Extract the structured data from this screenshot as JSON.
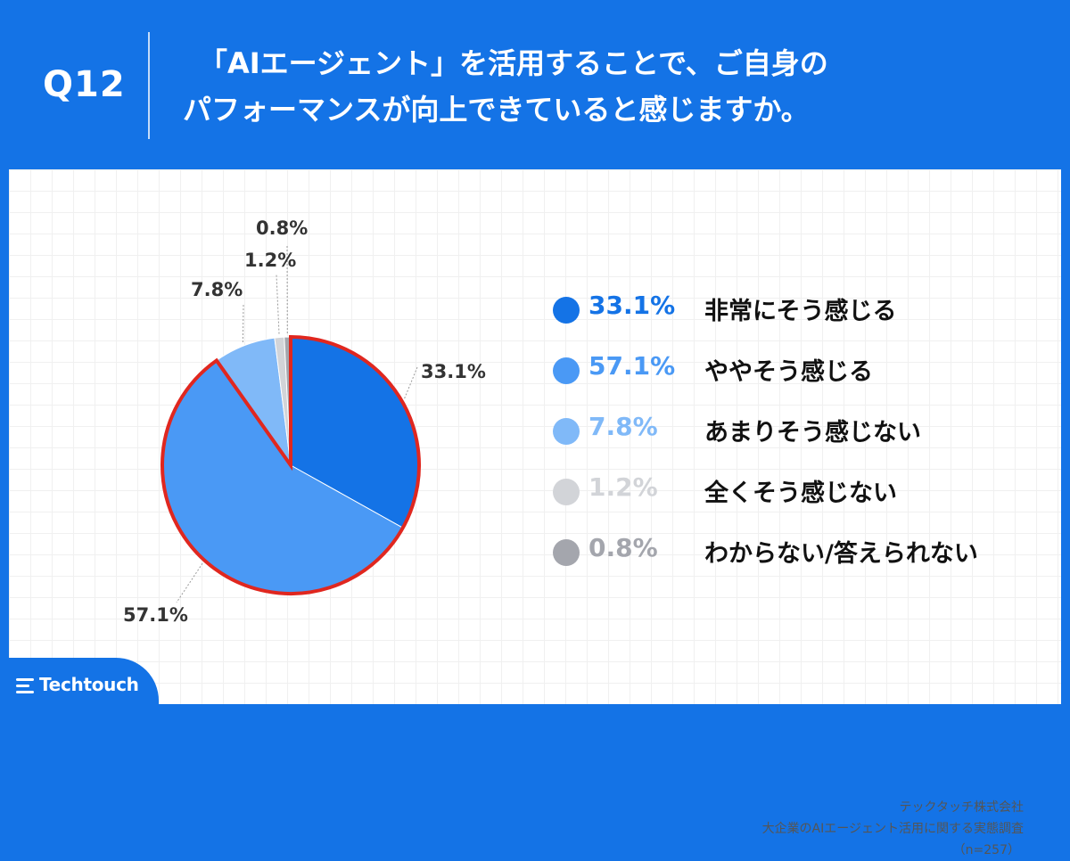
{
  "header": {
    "question_no": "Q12",
    "title_line1": "「AIエージェント」を活用することで、ご自身の",
    "title_line2": "パフォーマンスが向上できていると感じますか。"
  },
  "chart_data": {
    "type": "pie",
    "start_angle_deg": 0,
    "direction": "clockwise",
    "slices": [
      {
        "label": "非常にそう感じる",
        "value": 33.1,
        "value_label": "33.1%",
        "color": "#1473e6"
      },
      {
        "label": "ややそう感じる",
        "value": 57.1,
        "value_label": "57.1%",
        "color": "#4a99f5"
      },
      {
        "label": "あまりそう感じない",
        "value": 7.8,
        "value_label": "7.8%",
        "color": "#80b9f8"
      },
      {
        "label": "全くそう感じない",
        "value": 1.2,
        "value_label": "1.2%",
        "color": "#d2d4d8"
      },
      {
        "label": "わからない/答えられない",
        "value": 0.8,
        "value_label": "0.8%",
        "color": "#a4a6ad"
      }
    ],
    "highlight": {
      "slices": [
        "非常にそう感じる",
        "ややそう感じる"
      ],
      "outline_color": "#e0271f"
    },
    "n": 257
  },
  "legend": {
    "items": [
      {
        "pct": "33.1%",
        "label": "非常にそう感じる",
        "pct_color": "#1473e6",
        "dot_color": "#1473e6"
      },
      {
        "pct": "57.1%",
        "label": "ややそう感じる",
        "pct_color": "#4a99f5",
        "dot_color": "#4a99f5"
      },
      {
        "pct": "7.8%",
        "label": "あまりそう感じない",
        "pct_color": "#80b9f8",
        "dot_color": "#80b9f8"
      },
      {
        "pct": "1.2%",
        "label": "全くそう感じない",
        "pct_color": "#d2d4d8",
        "dot_color": "#d2d4d8"
      },
      {
        "pct": "0.8%",
        "label": "わからない/答えられない",
        "pct_color": "#a4a6ad",
        "dot_color": "#a4a6ad"
      }
    ]
  },
  "source": {
    "company": "テックタッチ株式会社",
    "survey": "大企業のAIエージェント活用に関する実態調査",
    "sample": "（n=257）"
  },
  "brand": {
    "logo_text": "Techtouch",
    "color": "#1473e6"
  }
}
